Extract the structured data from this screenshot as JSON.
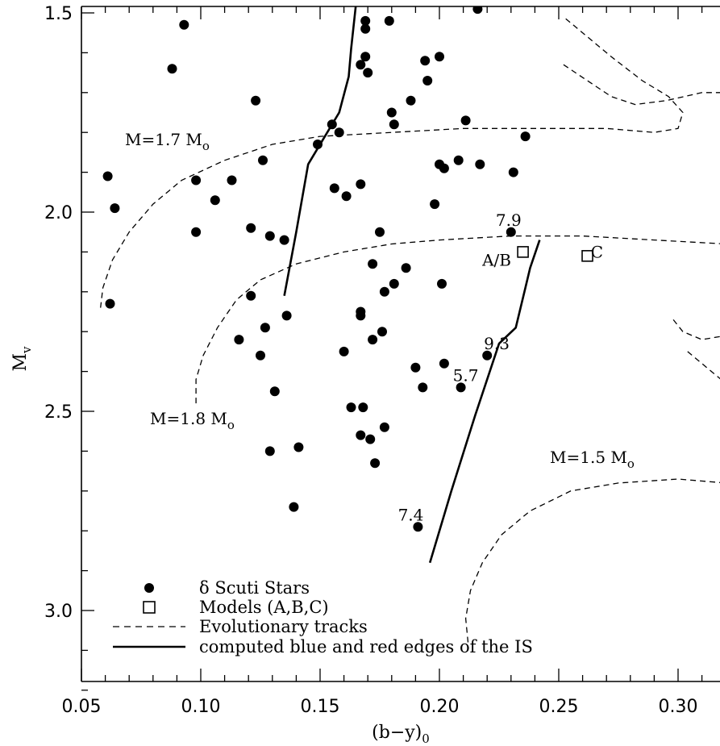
{
  "chart_data": {
    "type": "scatter",
    "xlabel": "(b−y)",
    "xlabel_sub": "0",
    "ylabel": "M",
    "ylabel_sub": "v",
    "xlim": [
      0.05,
      0.32
    ],
    "ylim": [
      3.2,
      1.5
    ],
    "y_inverted": true,
    "x_ticks": [
      0.05,
      0.1,
      0.15,
      0.2,
      0.25,
      0.3
    ],
    "x_tick_labels": [
      "0.05",
      "0.10",
      "0.15",
      "0.20",
      "0.25",
      "0.30"
    ],
    "y_ticks": [
      1.5,
      2.0,
      2.5,
      3.0
    ],
    "y_tick_labels": [
      "1.5",
      "2.0",
      "2.5",
      "3.0"
    ],
    "grid": false,
    "legend_position": "bottom-left",
    "legend": [
      {
        "marker": "filled-circle",
        "label": "δ Scuti Stars"
      },
      {
        "marker": "open-square",
        "label": "Models (A,B,C)"
      },
      {
        "marker": "dashed-line",
        "label": "Evolutionary tracks"
      },
      {
        "marker": "solid-line",
        "label": "computed blue and red edges of the IS"
      }
    ],
    "delta_scuti_stars": [
      {
        "x": 0.061,
        "y": 1.91
      },
      {
        "x": 0.062,
        "y": 2.23
      },
      {
        "x": 0.064,
        "y": 1.99
      },
      {
        "x": 0.088,
        "y": 1.64
      },
      {
        "x": 0.093,
        "y": 1.53
      },
      {
        "x": 0.098,
        "y": 1.92
      },
      {
        "x": 0.098,
        "y": 2.05
      },
      {
        "x": 0.106,
        "y": 1.97
      },
      {
        "x": 0.113,
        "y": 1.92
      },
      {
        "x": 0.116,
        "y": 2.32
      },
      {
        "x": 0.121,
        "y": 2.04
      },
      {
        "x": 0.121,
        "y": 2.21
      },
      {
        "x": 0.123,
        "y": 1.72
      },
      {
        "x": 0.125,
        "y": 2.36
      },
      {
        "x": 0.126,
        "y": 1.87
      },
      {
        "x": 0.127,
        "y": 2.29
      },
      {
        "x": 0.129,
        "y": 2.06
      },
      {
        "x": 0.129,
        "y": 2.6
      },
      {
        "x": 0.131,
        "y": 2.45
      },
      {
        "x": 0.135,
        "y": 2.07
      },
      {
        "x": 0.136,
        "y": 2.26
      },
      {
        "x": 0.139,
        "y": 2.74
      },
      {
        "x": 0.141,
        "y": 2.59
      },
      {
        "x": 0.149,
        "y": 1.83
      },
      {
        "x": 0.155,
        "y": 1.78
      },
      {
        "x": 0.156,
        "y": 1.94
      },
      {
        "x": 0.158,
        "y": 1.8
      },
      {
        "x": 0.16,
        "y": 2.35
      },
      {
        "x": 0.161,
        "y": 1.96
      },
      {
        "x": 0.163,
        "y": 2.49
      },
      {
        "x": 0.167,
        "y": 1.63
      },
      {
        "x": 0.167,
        "y": 1.93
      },
      {
        "x": 0.167,
        "y": 2.25
      },
      {
        "x": 0.167,
        "y": 2.26
      },
      {
        "x": 0.167,
        "y": 2.56
      },
      {
        "x": 0.168,
        "y": 2.49
      },
      {
        "x": 0.169,
        "y": 1.52
      },
      {
        "x": 0.169,
        "y": 1.54
      },
      {
        "x": 0.169,
        "y": 1.61
      },
      {
        "x": 0.17,
        "y": 1.65
      },
      {
        "x": 0.171,
        "y": 2.57
      },
      {
        "x": 0.172,
        "y": 2.13
      },
      {
        "x": 0.172,
        "y": 2.32
      },
      {
        "x": 0.173,
        "y": 2.63
      },
      {
        "x": 0.175,
        "y": 2.05
      },
      {
        "x": 0.176,
        "y": 2.3
      },
      {
        "x": 0.177,
        "y": 2.2
      },
      {
        "x": 0.177,
        "y": 2.54
      },
      {
        "x": 0.179,
        "y": 1.52
      },
      {
        "x": 0.18,
        "y": 1.75
      },
      {
        "x": 0.181,
        "y": 1.78
      },
      {
        "x": 0.181,
        "y": 2.18
      },
      {
        "x": 0.186,
        "y": 2.14
      },
      {
        "x": 0.188,
        "y": 1.72
      },
      {
        "x": 0.19,
        "y": 2.39
      },
      {
        "x": 0.191,
        "y": 2.79
      },
      {
        "x": 0.193,
        "y": 2.44
      },
      {
        "x": 0.194,
        "y": 1.62
      },
      {
        "x": 0.195,
        "y": 1.67
      },
      {
        "x": 0.198,
        "y": 1.98
      },
      {
        "x": 0.2,
        "y": 1.61
      },
      {
        "x": 0.2,
        "y": 1.88
      },
      {
        "x": 0.201,
        "y": 2.18
      },
      {
        "x": 0.202,
        "y": 1.89
      },
      {
        "x": 0.202,
        "y": 2.38
      },
      {
        "x": 0.208,
        "y": 1.87
      },
      {
        "x": 0.209,
        "y": 2.44
      },
      {
        "x": 0.211,
        "y": 1.77
      },
      {
        "x": 0.216,
        "y": 1.49
      },
      {
        "x": 0.217,
        "y": 1.88
      },
      {
        "x": 0.22,
        "y": 2.36
      },
      {
        "x": 0.23,
        "y": 2.05
      },
      {
        "x": 0.231,
        "y": 1.9
      },
      {
        "x": 0.236,
        "y": 1.81
      }
    ],
    "models": [
      {
        "label": "A/B",
        "x": 0.235,
        "y": 2.1
      },
      {
        "label": "C",
        "x": 0.262,
        "y": 2.11
      }
    ],
    "evolutionary_tracks": [
      {
        "label_main": "M=1.8 M",
        "label_sub": "o",
        "points": [
          [
            0.098,
            2.48
          ],
          [
            0.098,
            2.42
          ],
          [
            0.101,
            2.36
          ],
          [
            0.107,
            2.29
          ],
          [
            0.115,
            2.22
          ],
          [
            0.125,
            2.17
          ],
          [
            0.14,
            2.13
          ],
          [
            0.16,
            2.1
          ],
          [
            0.18,
            2.08
          ],
          [
            0.2,
            2.07
          ],
          [
            0.23,
            2.06
          ],
          [
            0.26,
            2.06
          ],
          [
            0.29,
            2.07
          ],
          [
            0.32,
            2.08
          ]
        ]
      },
      {
        "label_main": "M=1.7 M",
        "label_sub": "o",
        "points": [
          [
            0.058,
            2.24
          ],
          [
            0.059,
            2.19
          ],
          [
            0.063,
            2.12
          ],
          [
            0.07,
            2.05
          ],
          [
            0.08,
            1.98
          ],
          [
            0.092,
            1.92
          ],
          [
            0.11,
            1.87
          ],
          [
            0.13,
            1.83
          ],
          [
            0.15,
            1.81
          ],
          [
            0.18,
            1.8
          ],
          [
            0.21,
            1.79
          ],
          [
            0.24,
            1.79
          ],
          [
            0.27,
            1.79
          ],
          [
            0.29,
            1.8
          ],
          [
            0.3,
            1.79
          ],
          [
            0.302,
            1.75
          ],
          [
            0.296,
            1.71
          ],
          [
            0.285,
            1.67
          ],
          [
            0.272,
            1.61
          ],
          [
            0.262,
            1.56
          ],
          [
            0.252,
            1.51
          ]
        ]
      },
      {
        "label_main": "M=1.5 M",
        "label_sub": "o",
        "points": [
          [
            0.212,
            3.08
          ],
          [
            0.211,
            3.02
          ],
          [
            0.213,
            2.95
          ],
          [
            0.218,
            2.88
          ],
          [
            0.226,
            2.81
          ],
          [
            0.238,
            2.75
          ],
          [
            0.255,
            2.7
          ],
          [
            0.275,
            2.68
          ],
          [
            0.3,
            2.67
          ],
          [
            0.32,
            2.68
          ]
        ]
      },
      {
        "points": [
          [
            0.252,
            1.63
          ],
          [
            0.262,
            1.67
          ],
          [
            0.272,
            1.71
          ],
          [
            0.282,
            1.73
          ],
          [
            0.295,
            1.72
          ],
          [
            0.31,
            1.7
          ],
          [
            0.32,
            1.7
          ]
        ]
      },
      {
        "points": [
          [
            0.298,
            2.27
          ],
          [
            0.302,
            2.3
          ],
          [
            0.31,
            2.32
          ],
          [
            0.32,
            2.31
          ]
        ]
      },
      {
        "points": [
          [
            0.304,
            2.35
          ],
          [
            0.312,
            2.39
          ],
          [
            0.32,
            2.43
          ]
        ]
      }
    ],
    "instability_strip_edges": [
      {
        "name": "blue edge",
        "points": [
          [
            0.135,
            2.21
          ],
          [
            0.14,
            2.05
          ],
          [
            0.145,
            1.88
          ],
          [
            0.158,
            1.75
          ],
          [
            0.162,
            1.66
          ],
          [
            0.163,
            1.59
          ],
          [
            0.165,
            1.48
          ]
        ]
      },
      {
        "name": "red edge",
        "points": [
          [
            0.196,
            2.88
          ],
          [
            0.205,
            2.7
          ],
          [
            0.215,
            2.51
          ],
          [
            0.225,
            2.33
          ],
          [
            0.232,
            2.29
          ],
          [
            0.236,
            2.19
          ],
          [
            0.238,
            2.14
          ],
          [
            0.242,
            2.07
          ]
        ]
      }
    ],
    "annotations": [
      {
        "text": "7.9",
        "x": 0.229,
        "y": 2.02
      },
      {
        "text": "9.3",
        "x": 0.224,
        "y": 2.33
      },
      {
        "text": "5.7",
        "x": 0.211,
        "y": 2.41
      },
      {
        "text": "7.4",
        "x": 0.188,
        "y": 2.76
      },
      {
        "text": "A/B",
        "x": 0.224,
        "y": 2.12
      },
      {
        "text": "C",
        "x": 0.266,
        "y": 2.1
      }
    ]
  }
}
